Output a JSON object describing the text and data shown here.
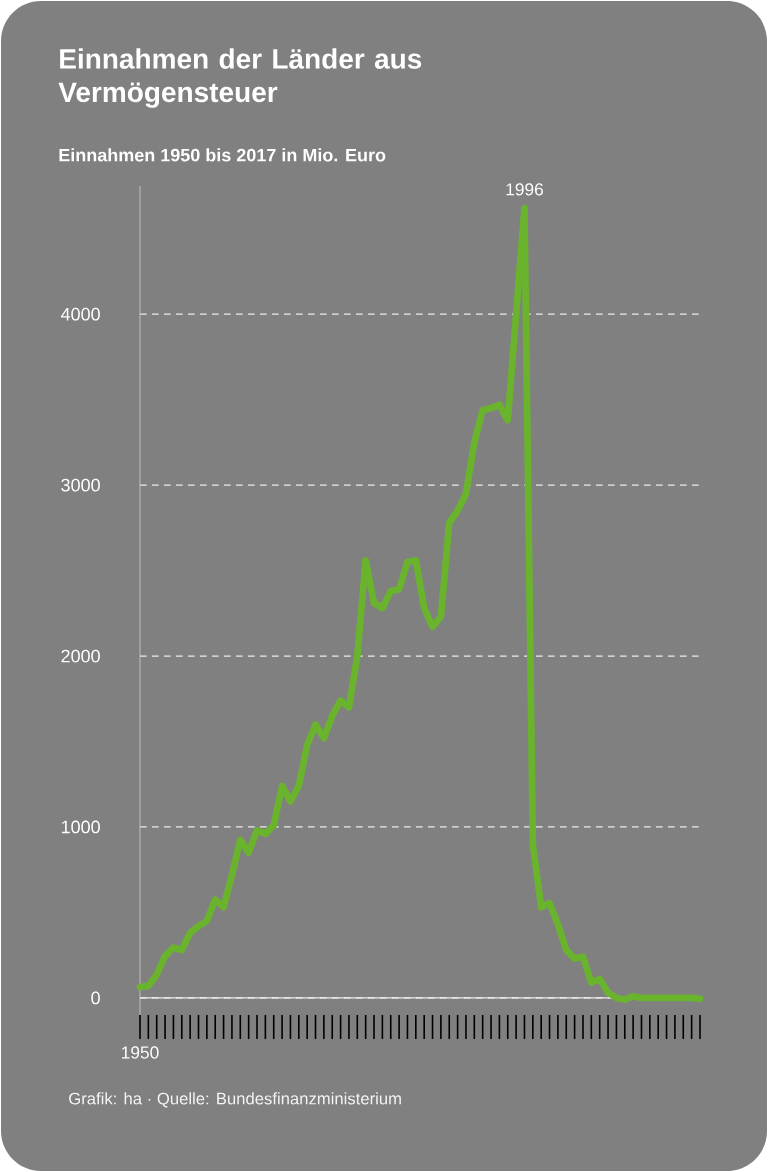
{
  "chart_data": {
    "type": "line",
    "title": "Einnahmen der Länder aus Vermögensteuer",
    "subtitle": "Einnahmen 1950 bis 2017 in Mio. Euro",
    "categories": [
      "1950",
      null,
      null,
      null,
      null,
      null,
      null,
      null,
      null,
      null,
      null,
      null,
      null,
      null,
      null,
      null,
      null,
      null,
      null,
      null,
      null,
      null,
      null,
      null,
      null,
      null,
      null,
      null,
      null,
      null,
      null,
      null,
      null,
      null,
      null,
      null,
      null,
      null,
      null,
      null,
      null,
      null,
      null,
      null,
      null,
      null,
      null,
      null,
      null,
      null,
      null,
      null,
      null,
      null,
      null,
      null,
      null,
      null,
      null,
      null,
      null,
      null,
      null,
      null,
      null,
      null,
      null,
      null
    ],
    "ylim": [
      -100,
      4750
    ],
    "values": [
      64,
      70,
      136,
      244,
      294,
      280,
      380,
      420,
      450,
      575,
      530,
      720,
      925,
      850,
      980,
      960,
      1010,
      1240,
      1150,
      1240,
      1480,
      1600,
      1520,
      1650,
      1740,
      1700,
      2000,
      2560,
      2310,
      2280,
      2380,
      2390,
      2550,
      2560,
      2280,
      2170,
      2230,
      2780,
      2850,
      2950,
      3250,
      3440,
      3450,
      3470,
      3380,
      4000,
      4620,
      900,
      530,
      555,
      430,
      280,
      230,
      240,
      90,
      110,
      30,
      0,
      -10,
      10,
      0,
      0,
      0,
      0,
      0,
      0,
      0,
      -5
    ],
    "color": "#6ab42d",
    "yticks": [
      {
        "value": 0,
        "label": "0"
      },
      {
        "value": 1000,
        "label": "1000"
      },
      {
        "value": 2000,
        "label": "2000"
      },
      {
        "value": 3000,
        "label": "3000"
      },
      {
        "value": 4000,
        "label": "4000"
      }
    ],
    "grid": "y",
    "annotations": [
      {
        "text": "1996",
        "y": 4620
      },
      "Grafik: ha  · Quelle: Bundesfinanzministerium"
    ]
  }
}
